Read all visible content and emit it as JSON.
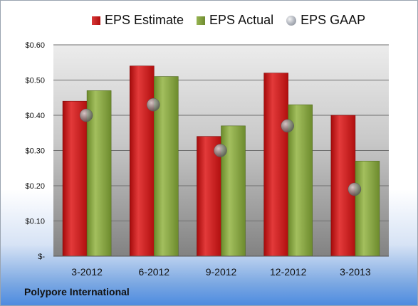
{
  "chart_data": {
    "type": "bar",
    "categories": [
      "3-2012",
      "6-2012",
      "9-2012",
      "12-2012",
      "3-2013"
    ],
    "series": [
      {
        "name": "EPS Estimate",
        "values": [
          0.44,
          0.54,
          0.34,
          0.52,
          0.4
        ],
        "color": "#cc1f1f",
        "kind": "bar"
      },
      {
        "name": "EPS Actual",
        "values": [
          0.47,
          0.51,
          0.37,
          0.43,
          0.27
        ],
        "color": "#7f9f3a",
        "kind": "bar"
      },
      {
        "name": "EPS GAAP",
        "values": [
          0.4,
          0.43,
          0.3,
          0.37,
          0.19
        ],
        "color": "#a7adb6",
        "kind": "marker"
      }
    ],
    "ylim": [
      0,
      0.6
    ],
    "yticks": [
      0,
      0.1,
      0.2,
      0.3,
      0.4,
      0.5,
      0.6
    ],
    "ytick_labels": [
      "$-",
      "$0.10",
      "$0.20",
      "$0.30",
      "$0.40",
      "$0.50",
      "$0.60"
    ],
    "grid": true,
    "legend_position": "top-center"
  },
  "footer": {
    "company": "Polypore International"
  }
}
